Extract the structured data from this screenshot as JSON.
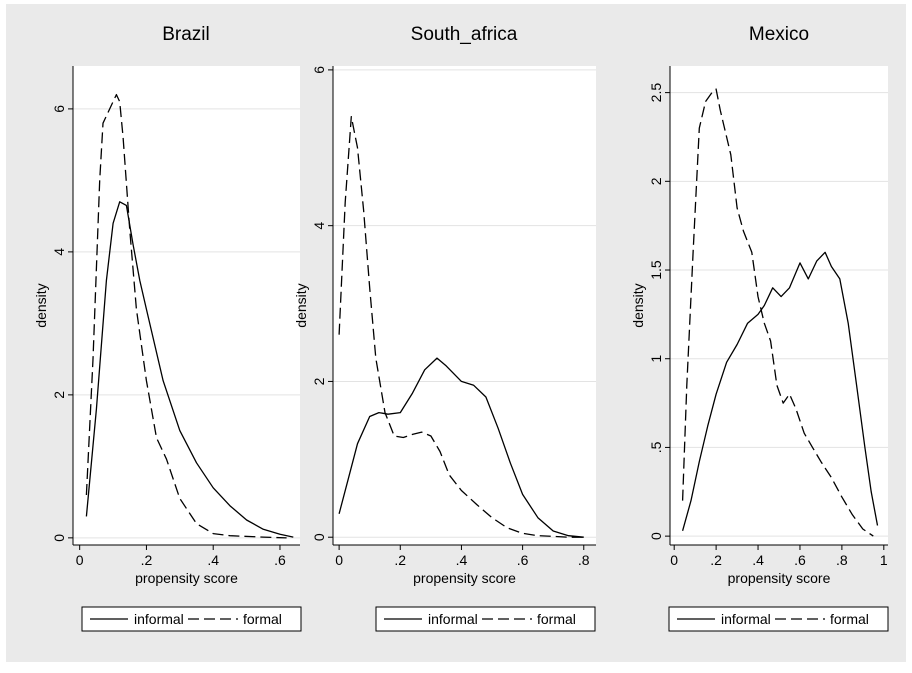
{
  "chart_data": [
    {
      "type": "line",
      "title": "Brazil",
      "xlabel": "propensity score",
      "ylabel": "density",
      "xlim": [
        -0.02,
        0.66
      ],
      "ylim": [
        -0.1,
        6.6
      ],
      "xticks": [
        0,
        0.2,
        0.4,
        0.6
      ],
      "xtick_labels": [
        "0",
        ".2",
        ".4",
        ".6"
      ],
      "yticks": [
        0,
        2,
        4,
        6
      ],
      "ytick_labels": [
        "0",
        "2",
        "4",
        "6"
      ],
      "grid": true,
      "legend_position": "bottom",
      "series": [
        {
          "name": "informal",
          "style": "solid",
          "x": [
            0.02,
            0.05,
            0.08,
            0.1,
            0.12,
            0.14,
            0.16,
            0.18,
            0.2,
            0.25,
            0.3,
            0.35,
            0.4,
            0.45,
            0.5,
            0.55,
            0.6,
            0.64
          ],
          "y": [
            0.3,
            1.8,
            3.6,
            4.4,
            4.7,
            4.65,
            4.1,
            3.6,
            3.2,
            2.2,
            1.5,
            1.05,
            0.7,
            0.45,
            0.25,
            0.12,
            0.05,
            0.01
          ]
        },
        {
          "name": "formal",
          "style": "dashed",
          "x": [
            0.02,
            0.04,
            0.06,
            0.07,
            0.09,
            0.11,
            0.12,
            0.13,
            0.15,
            0.17,
            0.2,
            0.23,
            0.26,
            0.3,
            0.35,
            0.4,
            0.45,
            0.55,
            0.62
          ],
          "y": [
            0.6,
            2.5,
            5.0,
            5.8,
            6.0,
            6.2,
            6.1,
            5.6,
            4.3,
            3.2,
            2.2,
            1.4,
            1.1,
            0.55,
            0.2,
            0.06,
            0.03,
            0.01,
            0.0
          ]
        }
      ]
    },
    {
      "type": "line",
      "title": "South_africa",
      "xlabel": "propensity score",
      "ylabel": "density",
      "xlim": [
        -0.02,
        0.84
      ],
      "ylim": [
        -0.1,
        6.05
      ],
      "xticks": [
        0,
        0.2,
        0.4,
        0.6,
        0.8
      ],
      "xtick_labels": [
        "0",
        ".2",
        ".4",
        ".6",
        ".8"
      ],
      "yticks": [
        0,
        2,
        4,
        6
      ],
      "ytick_labels": [
        "0",
        "2",
        "4",
        "6"
      ],
      "grid": true,
      "legend_position": "bottom",
      "series": [
        {
          "name": "informal",
          "style": "solid",
          "x": [
            0.0,
            0.03,
            0.06,
            0.1,
            0.13,
            0.16,
            0.2,
            0.24,
            0.28,
            0.32,
            0.35,
            0.4,
            0.44,
            0.48,
            0.52,
            0.56,
            0.6,
            0.65,
            0.7,
            0.75,
            0.8
          ],
          "y": [
            0.3,
            0.75,
            1.2,
            1.55,
            1.6,
            1.58,
            1.6,
            1.85,
            2.15,
            2.3,
            2.2,
            2.0,
            1.95,
            1.8,
            1.4,
            0.95,
            0.55,
            0.25,
            0.08,
            0.02,
            0.0
          ]
        },
        {
          "name": "formal",
          "style": "dashed",
          "x": [
            0.0,
            0.02,
            0.04,
            0.06,
            0.08,
            0.1,
            0.12,
            0.15,
            0.18,
            0.21,
            0.24,
            0.27,
            0.3,
            0.33,
            0.36,
            0.4,
            0.45,
            0.5,
            0.55,
            0.6,
            0.65,
            0.7,
            0.75,
            0.8
          ],
          "y": [
            2.6,
            4.3,
            5.4,
            5.0,
            4.2,
            3.2,
            2.3,
            1.6,
            1.3,
            1.28,
            1.32,
            1.35,
            1.3,
            1.1,
            0.8,
            0.6,
            0.42,
            0.25,
            0.12,
            0.05,
            0.02,
            0.01,
            0.0,
            0.0
          ]
        }
      ]
    },
    {
      "type": "line",
      "title": "Mexico",
      "xlabel": "propensity score",
      "ylabel": "density",
      "xlim": [
        -0.02,
        1.02
      ],
      "ylim": [
        -0.05,
        2.65
      ],
      "xticks": [
        0,
        0.2,
        0.4,
        0.6,
        0.8,
        1.0
      ],
      "xtick_labels": [
        "0",
        ".2",
        ".4",
        ".6",
        ".8",
        "1"
      ],
      "yticks": [
        0,
        0.5,
        1,
        1.5,
        2,
        2.5
      ],
      "ytick_labels": [
        "0",
        ".5",
        "1",
        "1.5",
        "2",
        "2.5"
      ],
      "grid": true,
      "legend_position": "bottom",
      "series": [
        {
          "name": "informal",
          "style": "solid",
          "x": [
            0.04,
            0.08,
            0.12,
            0.16,
            0.2,
            0.25,
            0.3,
            0.35,
            0.4,
            0.43,
            0.47,
            0.51,
            0.55,
            0.6,
            0.64,
            0.68,
            0.72,
            0.75,
            0.79,
            0.83,
            0.87,
            0.91,
            0.94,
            0.97
          ],
          "y": [
            0.03,
            0.2,
            0.42,
            0.62,
            0.8,
            0.98,
            1.08,
            1.2,
            1.25,
            1.3,
            1.4,
            1.35,
            1.4,
            1.54,
            1.45,
            1.55,
            1.6,
            1.52,
            1.45,
            1.2,
            0.85,
            0.5,
            0.25,
            0.06
          ]
        },
        {
          "name": "formal",
          "style": "dashed",
          "x": [
            0.04,
            0.06,
            0.09,
            0.12,
            0.15,
            0.18,
            0.2,
            0.22,
            0.24,
            0.27,
            0.3,
            0.33,
            0.37,
            0.4,
            0.43,
            0.46,
            0.49,
            0.52,
            0.55,
            0.58,
            0.62,
            0.66,
            0.7,
            0.75,
            0.8,
            0.85,
            0.9,
            0.95
          ],
          "y": [
            0.2,
            0.85,
            1.6,
            2.3,
            2.45,
            2.5,
            2.52,
            2.4,
            2.3,
            2.15,
            1.85,
            1.72,
            1.6,
            1.35,
            1.2,
            1.1,
            0.85,
            0.75,
            0.8,
            0.72,
            0.58,
            0.5,
            0.42,
            0.33,
            0.22,
            0.12,
            0.04,
            0.0
          ]
        }
      ]
    }
  ]
}
